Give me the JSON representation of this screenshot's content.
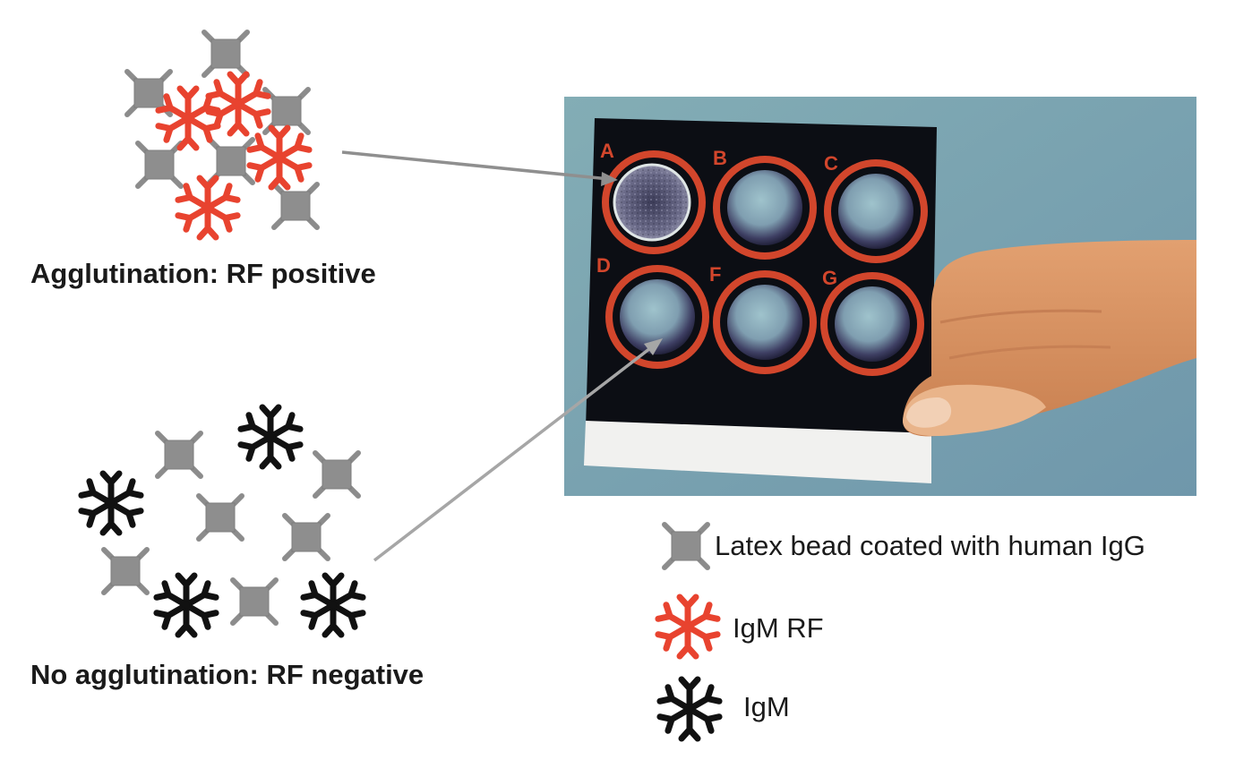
{
  "captions": {
    "positive": "Agglutination: RF positive",
    "negative": "No agglutination: RF negative"
  },
  "photo": {
    "well_labels": [
      "A",
      "B",
      "C",
      "D",
      "F",
      "G"
    ],
    "agglutinated_well": "A",
    "negative_pointed_well": "D"
  },
  "legend": {
    "bead_label": "Latex bead coated with human IgG",
    "rf_label": "IgM RF",
    "igm_label": "IgM"
  },
  "colors": {
    "bead": "#8c8c8c",
    "igm_rf": "#e8432f",
    "igm": "#111111",
    "card": "#0c0e14",
    "well_ring": "#d2462c",
    "photo_background": "#7aa3b0",
    "pointer_line": "#a6a6a6"
  },
  "icons": {
    "bead": "latex-bead-icon",
    "igm_rf": "igm-rf-icon",
    "igm": "igm-icon"
  }
}
